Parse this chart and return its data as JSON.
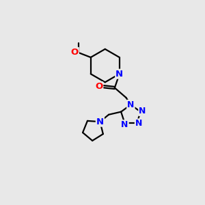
{
  "background_color": "#e8e8e8",
  "bond_color": "#000000",
  "nitrogen_color": "#0000ff",
  "oxygen_color": "#ff0000",
  "font_size": 9.5,
  "figsize": [
    3.0,
    3.0
  ],
  "dpi": 100,
  "xlim": [
    0,
    10
  ],
  "ylim": [
    0,
    10
  ]
}
